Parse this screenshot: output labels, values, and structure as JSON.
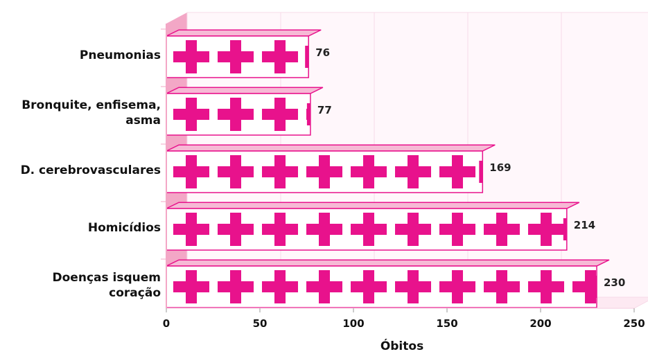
{
  "chart_data": {
    "type": "bar",
    "orientation": "horizontal",
    "categories": [
      [
        "Pneumonias"
      ],
      [
        "Bronquite, enfisema,",
        "asma"
      ],
      [
        "D. cerebrovasculares"
      ],
      [
        "Homicídios"
      ],
      [
        "Doenças isquem",
        "coração"
      ]
    ],
    "values": [
      76,
      77,
      169,
      214,
      230
    ],
    "xlabel": "Óbitos",
    "ylabel": "",
    "xlim": [
      0,
      250
    ],
    "xticks": [
      0,
      50,
      100,
      150,
      200,
      250
    ],
    "grid": true,
    "bar_style": "pictogram-cross",
    "colors": {
      "bar": "#e8128c",
      "wall": "#f3a7c6",
      "gridline": "#f7dbe8",
      "outline": "#e8128c"
    }
  }
}
